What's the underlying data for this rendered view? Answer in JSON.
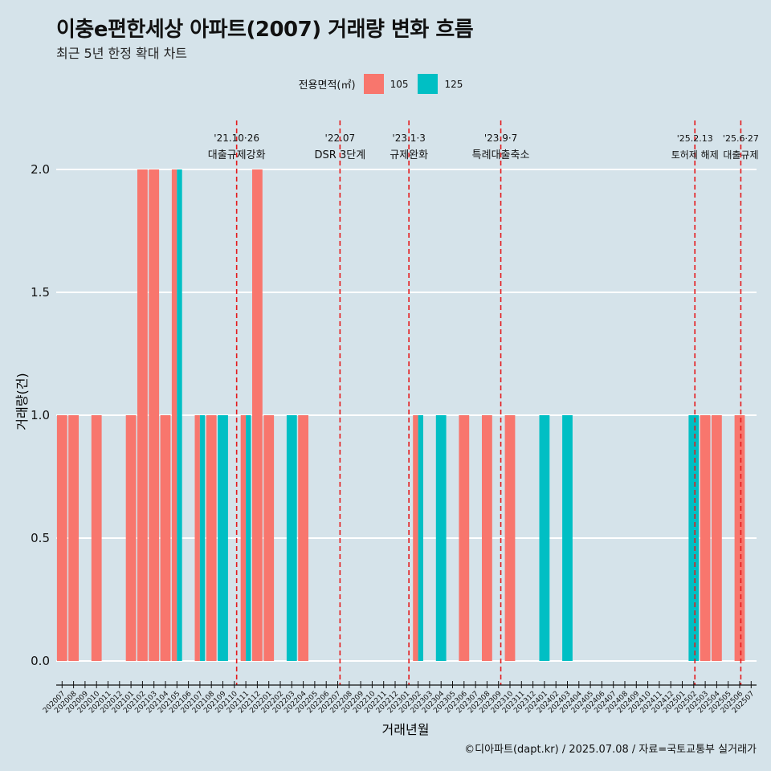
{
  "title": "이충e편한세상 아파트(2007) 거래량 변화 흐름",
  "subtitle": "최근 5년 한정 확대 차트",
  "caption": "©디아파트(dapt.kr) / 2025.07.08 / 자료=국토교통부 실거래가",
  "colors": {
    "105": "#f8766d",
    "125": "#00bfc4",
    "event_line": "#e41a1c",
    "grid": "#ffffff",
    "background": "#d5e3ea"
  },
  "chart_data": {
    "type": "bar",
    "xlabel": "거래년월",
    "ylabel": "거래량(건)",
    "ylim": [
      0,
      2
    ],
    "yticks": [
      "0.0",
      "0.5",
      "1.0",
      "1.5",
      "2.0"
    ],
    "legend_title": "전용면적(㎡)",
    "legend_position": "top",
    "categories": [
      "202007",
      "202008",
      "202009",
      "202010",
      "202011",
      "202012",
      "202101",
      "202102",
      "202103",
      "202104",
      "202105",
      "202106",
      "202107",
      "202108",
      "202109",
      "202110",
      "202111",
      "202112",
      "202201",
      "202202",
      "202203",
      "202204",
      "202205",
      "202206",
      "202207",
      "202208",
      "202209",
      "202210",
      "202211",
      "202212",
      "202301",
      "202302",
      "202303",
      "202304",
      "202305",
      "202306",
      "202307",
      "202308",
      "202309",
      "202310",
      "202311",
      "202312",
      "202401",
      "202402",
      "202403",
      "202404",
      "202405",
      "202406",
      "202407",
      "202408",
      "202409",
      "202410",
      "202411",
      "202412",
      "202501",
      "202502",
      "202503",
      "202504",
      "202505",
      "202506",
      "202507"
    ],
    "series": [
      {
        "name": "105",
        "points": [
          [
            "202007",
            1
          ],
          [
            "202008",
            1
          ],
          [
            "202010",
            1
          ],
          [
            "202101",
            1
          ],
          [
            "202102",
            2
          ],
          [
            "202103",
            2
          ],
          [
            "202104",
            1
          ],
          [
            "202105",
            2
          ],
          [
            "202107",
            1
          ],
          [
            "202108",
            1
          ],
          [
            "202111",
            1
          ],
          [
            "202112",
            2
          ],
          [
            "202201",
            1
          ],
          [
            "202204",
            1
          ],
          [
            "202302",
            1
          ],
          [
            "202306",
            1
          ],
          [
            "202308",
            1
          ],
          [
            "202310",
            1
          ],
          [
            "202503",
            1
          ],
          [
            "202504",
            1
          ],
          [
            "202506",
            1
          ]
        ]
      },
      {
        "name": "125",
        "points": [
          [
            "202105",
            2
          ],
          [
            "202107",
            1
          ],
          [
            "202109",
            1
          ],
          [
            "202111",
            1
          ],
          [
            "202203",
            1
          ],
          [
            "202302",
            1
          ],
          [
            "202304",
            1
          ],
          [
            "202401",
            1
          ],
          [
            "202403",
            1
          ],
          [
            "202502",
            1
          ]
        ]
      }
    ],
    "events": [
      {
        "date": "'21.10·26",
        "label": "대출규제강화",
        "pos": 15.2
      },
      {
        "date": "'22.07",
        "label": "DSR 3단계",
        "pos": 24.2
      },
      {
        "date": "'23.1·3",
        "label": "규제완화",
        "pos": 30.2
      },
      {
        "date": "'23.9·7",
        "label": "특례대출축소",
        "pos": 38.2
      },
      {
        "date": "'25.2.13",
        "label": "토허제 해제",
        "pos": 55.1
      },
      {
        "date": "'25.6·27",
        "label": "대출규제",
        "pos": 59.1
      }
    ]
  }
}
